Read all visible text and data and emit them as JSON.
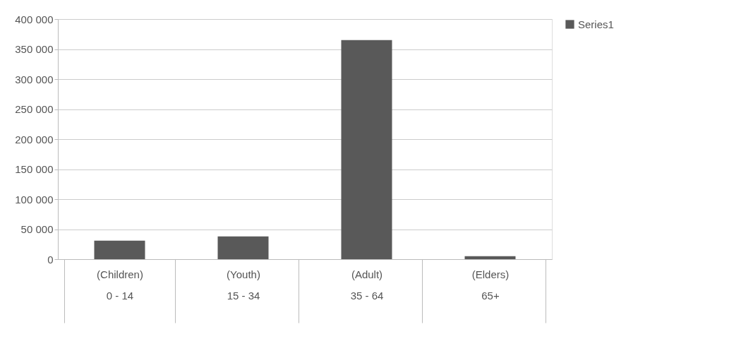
{
  "chart_data": {
    "type": "bar",
    "categories": [
      "(Children)\n0 - 14",
      "(Youth)\n15 - 34",
      "(Adult)\n35 - 64",
      "(Elders)\n65+"
    ],
    "series": [
      {
        "name": "Series1",
        "color": "#595959",
        "values": [
          31000,
          38000,
          365000,
          5000
        ]
      }
    ],
    "ylim": [
      0,
      400000
    ],
    "yticks": [
      {
        "value": 0,
        "label": "0"
      },
      {
        "value": 50000,
        "label": "50 000"
      },
      {
        "value": 100000,
        "label": "100 000"
      },
      {
        "value": 150000,
        "label": "150 000"
      },
      {
        "value": 200000,
        "label": "200 000"
      },
      {
        "value": 250000,
        "label": "250 000"
      },
      {
        "value": 300000,
        "label": "300 000"
      },
      {
        "value": 350000,
        "label": "350 000"
      },
      {
        "value": 400000,
        "label": "400 000"
      }
    ],
    "grid": "y",
    "legend": "right"
  }
}
